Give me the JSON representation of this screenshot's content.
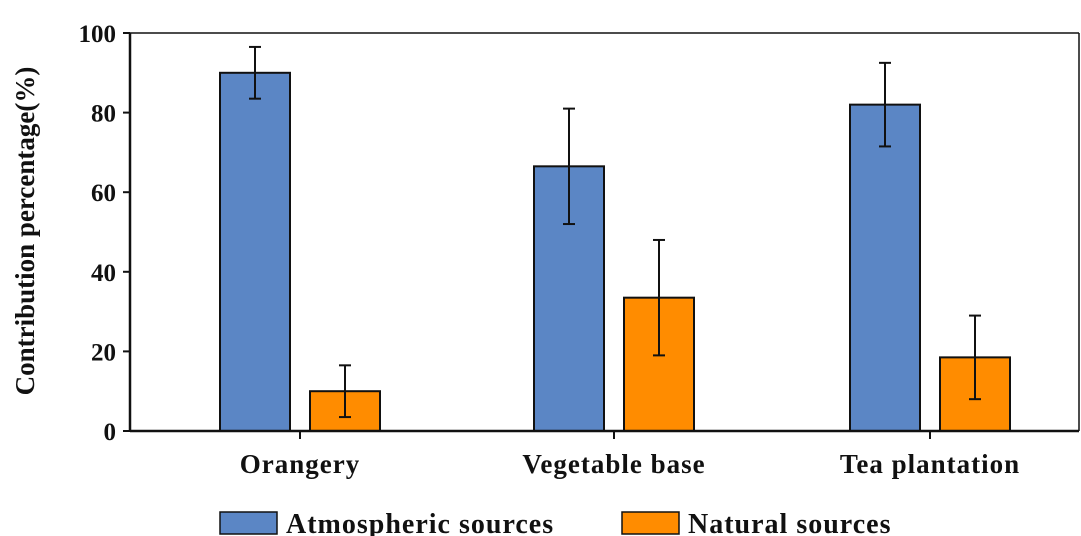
{
  "chart_data": {
    "type": "bar",
    "ylabel": "Contribution percentage(%)",
    "ylim": [
      0,
      100
    ],
    "yticks": [
      0,
      20,
      40,
      60,
      80,
      100
    ],
    "categories": [
      "Orangery",
      "Vegetable base",
      "Tea plantation"
    ],
    "series": [
      {
        "name": "Atmospheric sources",
        "color": "#5b86c5",
        "values": [
          90,
          66.5,
          82
        ],
        "error": [
          6.5,
          14.5,
          10.5
        ]
      },
      {
        "name": "Natural sources",
        "color": "#ff8c00",
        "values": [
          10,
          33.5,
          18.5
        ],
        "error": [
          6.5,
          14.5,
          10.5
        ]
      }
    ],
    "grid": false,
    "legend": "bottom"
  }
}
